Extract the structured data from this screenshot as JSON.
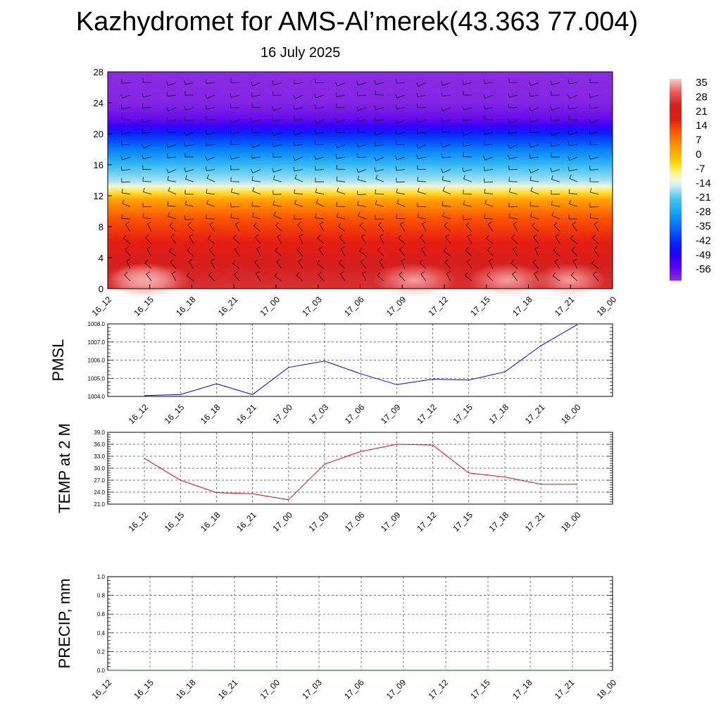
{
  "header": {
    "title": "Kazhydromet for AMS-Al’merek(43.363 77.004)",
    "subtitle": "16 July 2025"
  },
  "colors": {
    "pmsl_line": "#0000ff",
    "temp_line": "#ff0000",
    "precip_line": "#006400",
    "grid": "#444444"
  },
  "chart_data": [
    {
      "type": "heatmap",
      "y_ticks": [
        "0",
        "4",
        "8",
        "12",
        "16",
        "20",
        "24",
        "28"
      ],
      "ylim": [
        0,
        28
      ],
      "x_tick_labels": [
        "16_12",
        "16_15",
        "16_18",
        "16_21",
        "17_00",
        "17_03",
        "17_06",
        "17_09",
        "17_12",
        "17_15",
        "17_18",
        "17_21",
        "18_00"
      ],
      "colorbar": {
        "labels": [
          "35",
          "28",
          "21",
          "14",
          "7",
          "0",
          "-7",
          "-14",
          "-21",
          "-28",
          "-35",
          "-42",
          "-49",
          "-56"
        ],
        "range": [
          -63,
          42
        ]
      },
      "overlay": "wind barbs"
    },
    {
      "type": "line",
      "ylabel": "PMSL",
      "ylim": [
        1004.0,
        1008.0
      ],
      "y_ticks": [
        "1004.0",
        "1005.0",
        "1006.0",
        "1007.0",
        "1008.0"
      ],
      "categories": [
        "16_12",
        "16_15",
        "16_18",
        "16_21",
        "17_00",
        "17_03",
        "17_06",
        "17_09",
        "17_12",
        "17_15",
        "17_18",
        "17_21",
        "18_00"
      ],
      "values": [
        1004.05,
        1004.1,
        1004.7,
        1004.1,
        1005.6,
        1005.95,
        1005.25,
        1004.65,
        1004.95,
        1004.9,
        1005.35,
        1006.8,
        1007.95
      ],
      "grid": true
    },
    {
      "type": "line",
      "ylabel": "TEMP at 2 M",
      "ylim": [
        21.0,
        39.0
      ],
      "y_ticks": [
        "21.0",
        "24.0",
        "27.0",
        "30.0",
        "33.0",
        "36.0",
        "39.0"
      ],
      "categories": [
        "16_12",
        "16_15",
        "16_18",
        "16_21",
        "17_00",
        "17_03",
        "17_06",
        "17_09",
        "17_12",
        "17_15",
        "17_18",
        "17_21",
        "18_00"
      ],
      "values": [
        32.5,
        27.0,
        23.9,
        23.6,
        22.1,
        31.0,
        34.2,
        36.0,
        35.8,
        28.8,
        27.8,
        26.0,
        26.0
      ],
      "grid": true
    },
    {
      "type": "line",
      "ylabel": "PRECIP, mm",
      "ylim": [
        0.0,
        1.0
      ],
      "y_ticks": [
        "0.0",
        "0.2",
        "0.4",
        "0.6",
        "0.8",
        "1.0"
      ],
      "x_tick_labels": [
        "16_12",
        "16_15",
        "16_18",
        "16_21",
        "17_00",
        "17_03",
        "17_06",
        "17_09",
        "17_12",
        "17_15",
        "17_18",
        "17_21",
        "18_00"
      ],
      "values": [
        0,
        0,
        0,
        0,
        0,
        0,
        0,
        0,
        0,
        0,
        0,
        0,
        0
      ],
      "grid": true
    }
  ]
}
